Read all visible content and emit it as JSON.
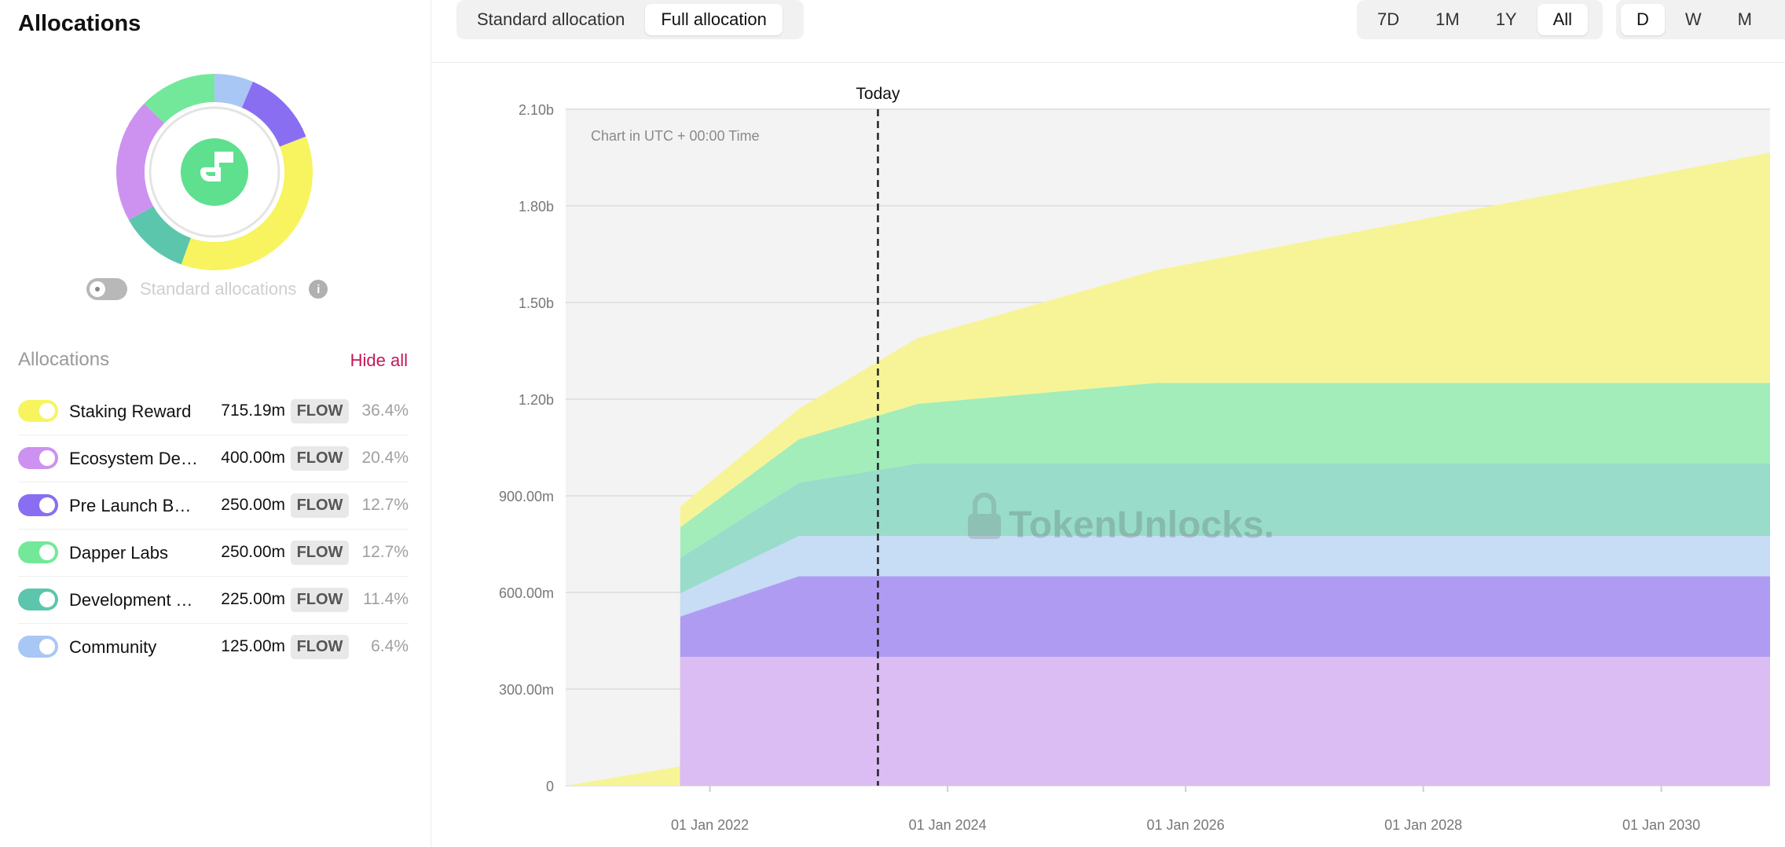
{
  "sidebar": {
    "title": "Allocations",
    "standard_toggle_label": "Standard allocations",
    "standard_toggle_on": false,
    "info_icon": "i",
    "list_header": "Allocations",
    "hide_all_label": "Hide all",
    "items": [
      {
        "name": "Staking Reward",
        "amount": "715.19m",
        "token": "FLOW",
        "percent": "36.4%",
        "share": 0.364,
        "color": "#f7f45f",
        "enabled": true
      },
      {
        "name": "Ecosystem Development",
        "amount": "400.00m",
        "token": "FLOW",
        "percent": "20.4%",
        "share": 0.204,
        "color": "#cd92f0",
        "enabled": true
      },
      {
        "name": "Pre Launch Backers",
        "amount": "250.00m",
        "token": "FLOW",
        "percent": "12.7%",
        "share": 0.127,
        "color": "#8a6ef2",
        "enabled": true
      },
      {
        "name": "Dapper Labs",
        "amount": "250.00m",
        "token": "FLOW",
        "percent": "12.7%",
        "share": 0.127,
        "color": "#74e89a",
        "enabled": true
      },
      {
        "name": "Development Team",
        "amount": "225.00m",
        "token": "FLOW",
        "percent": "11.4%",
        "share": 0.114,
        "color": "#5cc6ad",
        "enabled": true
      },
      {
        "name": "Community",
        "amount": "125.00m",
        "token": "FLOW",
        "percent": "6.4%",
        "share": 0.064,
        "color": "#a9c7f5",
        "enabled": true
      }
    ],
    "donut_logo_icon": "flow-logo-icon",
    "donut_logo_color": "#5ee08f"
  },
  "toolbar": {
    "allocation_tabs": [
      {
        "label": "Standard allocation",
        "active": false
      },
      {
        "label": "Full allocation",
        "active": true
      }
    ],
    "range_tabs": [
      {
        "label": "7D",
        "active": false
      },
      {
        "label": "1M",
        "active": false
      },
      {
        "label": "1Y",
        "active": false
      },
      {
        "label": "All",
        "active": true
      }
    ],
    "granularity_tabs": [
      {
        "label": "D",
        "active": true
      },
      {
        "label": "W",
        "active": false
      },
      {
        "label": "M",
        "active": false
      }
    ]
  },
  "chart_data": {
    "type": "area",
    "stacked": true,
    "x_axis_type": "date",
    "x_ticks": [
      "01 Jan 2022",
      "01 Jan 2024",
      "01 Jan 2026",
      "01 Jan 2028",
      "01 Jan 2030"
    ],
    "y_ticks": [
      "0",
      "300.00m",
      "600.00m",
      "900.00m",
      "1.20b",
      "1.50b",
      "1.80b",
      "2.10b"
    ],
    "ylim": [
      0,
      2100000000
    ],
    "xlim": [
      "2020-10-15",
      "2030-12-01"
    ],
    "grid": true,
    "annotation_today": {
      "label": "Today",
      "date": "2023-06-01"
    },
    "note": "Chart in UTC + 00:00 Time",
    "watermark": "TokenUnlocks.",
    "series": [
      {
        "name": "Ecosystem Development",
        "color": "#dbbdf3",
        "points": [
          [
            "2020-10-15",
            0
          ],
          [
            "2021-10-01",
            0
          ],
          [
            "2021-10-02",
            400000000
          ],
          [
            "2030-12-01",
            400000000
          ]
        ]
      },
      {
        "name": "Pre Launch Backers",
        "color": "#b09bf2",
        "points": [
          [
            "2020-10-15",
            0
          ],
          [
            "2021-10-01",
            0
          ],
          [
            "2021-10-02",
            125000000
          ],
          [
            "2022-10-01",
            250000000
          ],
          [
            "2030-12-01",
            250000000
          ]
        ]
      },
      {
        "name": "Community",
        "color": "#c7dcf5",
        "points": [
          [
            "2020-10-15",
            0
          ],
          [
            "2021-10-01",
            0
          ],
          [
            "2021-10-02",
            72000000
          ],
          [
            "2022-10-01",
            125000000
          ],
          [
            "2030-12-01",
            125000000
          ]
        ]
      },
      {
        "name": "Development Team",
        "color": "#99dcca",
        "points": [
          [
            "2020-10-15",
            0
          ],
          [
            "2021-10-01",
            0
          ],
          [
            "2021-10-02",
            110000000
          ],
          [
            "2022-10-01",
            165000000
          ],
          [
            "2023-10-01",
            225000000
          ],
          [
            "2030-12-01",
            225000000
          ]
        ]
      },
      {
        "name": "Dapper Labs",
        "color": "#a2edba",
        "points": [
          [
            "2020-10-15",
            0
          ],
          [
            "2021-10-01",
            0
          ],
          [
            "2021-10-02",
            95000000
          ],
          [
            "2022-10-01",
            135000000
          ],
          [
            "2023-10-01",
            185000000
          ],
          [
            "2025-10-01",
            250000000
          ],
          [
            "2030-12-01",
            250000000
          ]
        ]
      },
      {
        "name": "Staking Reward",
        "color": "#f7f497",
        "points": [
          [
            "2020-10-15",
            0
          ],
          [
            "2021-10-01",
            60000000
          ],
          [
            "2021-10-02",
            65000000
          ],
          [
            "2022-10-01",
            95000000
          ],
          [
            "2023-10-01",
            205000000
          ],
          [
            "2025-10-01",
            350000000
          ],
          [
            "2030-12-01",
            715190000
          ]
        ]
      }
    ]
  }
}
